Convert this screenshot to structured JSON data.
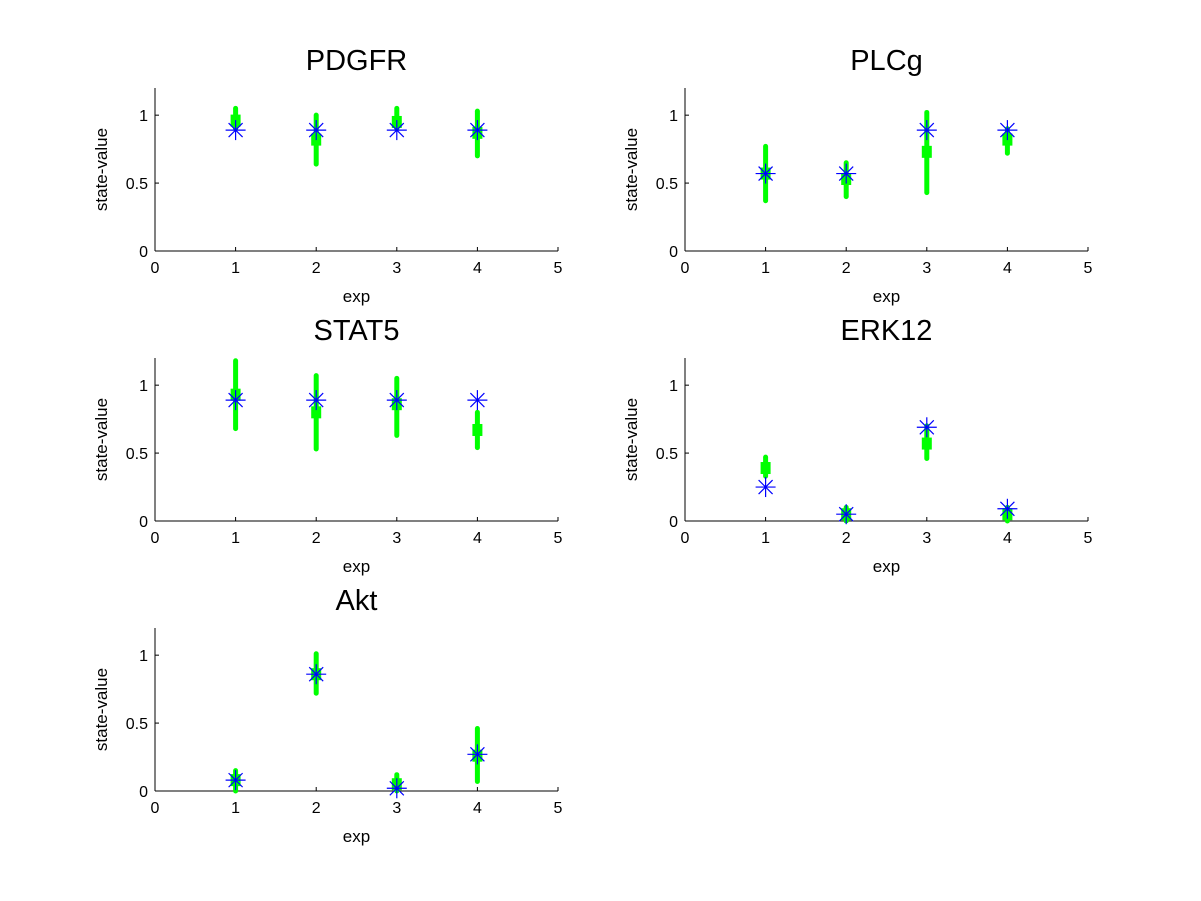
{
  "figure": {
    "background": "#ffffff",
    "marker_color": "#0000ff",
    "errorbar_color": "#00ff00"
  },
  "chart_data": [
    {
      "type": "scatter",
      "title": "PDGFR",
      "xlabel": "exp",
      "ylabel": "state-value",
      "xlim": [
        0,
        5
      ],
      "ylim": [
        0,
        1.2
      ],
      "xticks": [
        "0",
        "1",
        "2",
        "3",
        "4",
        "5"
      ],
      "yticks": [
        "0",
        "0.5",
        "1"
      ],
      "x": [
        1,
        2,
        3,
        4
      ],
      "measured": [
        0.96,
        0.82,
        0.95,
        0.87
      ],
      "error_low": [
        0.9,
        0.64,
        0.9,
        0.7
      ],
      "error_high": [
        1.05,
        1.0,
        1.05,
        1.03
      ],
      "simulated": [
        0.89,
        0.89,
        0.89,
        0.89
      ]
    },
    {
      "type": "scatter",
      "title": "PLCg",
      "xlabel": "exp",
      "ylabel": "state-value",
      "xlim": [
        0,
        5
      ],
      "ylim": [
        0,
        1.2
      ],
      "xticks": [
        "0",
        "1",
        "2",
        "3",
        "4",
        "5"
      ],
      "yticks": [
        "0",
        "0.5",
        "1"
      ],
      "x": [
        1,
        2,
        3,
        4
      ],
      "measured": [
        0.57,
        0.53,
        0.73,
        0.82
      ],
      "error_low": [
        0.37,
        0.4,
        0.43,
        0.72
      ],
      "error_high": [
        0.77,
        0.65,
        1.02,
        0.9
      ],
      "simulated": [
        0.57,
        0.57,
        0.89,
        0.89
      ]
    },
    {
      "type": "scatter",
      "title": "STAT5",
      "xlabel": "exp",
      "ylabel": "state-value",
      "xlim": [
        0,
        5
      ],
      "ylim": [
        0,
        1.2
      ],
      "xticks": [
        "0",
        "1",
        "2",
        "3",
        "4",
        "5"
      ],
      "yticks": [
        "0",
        "0.5",
        "1"
      ],
      "x": [
        1,
        2,
        3,
        4
      ],
      "measured": [
        0.93,
        0.8,
        0.86,
        0.67
      ],
      "error_low": [
        0.68,
        0.53,
        0.63,
        0.54
      ],
      "error_high": [
        1.18,
        1.07,
        1.05,
        0.8
      ],
      "simulated": [
        0.89,
        0.89,
        0.89,
        0.89
      ]
    },
    {
      "type": "scatter",
      "title": "ERK12",
      "xlabel": "exp",
      "ylabel": "state-value",
      "xlim": [
        0,
        5
      ],
      "ylim": [
        0,
        1.2
      ],
      "xticks": [
        "0",
        "1",
        "2",
        "3",
        "4",
        "5"
      ],
      "yticks": [
        "0",
        "0.5",
        "1"
      ],
      "x": [
        1,
        2,
        3,
        4
      ],
      "measured": [
        0.39,
        0.05,
        0.57,
        0.05
      ],
      "error_low": [
        0.33,
        0.0,
        0.46,
        0.0
      ],
      "error_high": [
        0.47,
        0.1,
        0.7,
        0.1
      ],
      "simulated": [
        0.25,
        0.05,
        0.69,
        0.09
      ]
    },
    {
      "type": "scatter",
      "title": "Akt",
      "xlabel": "exp",
      "ylabel": "state-value",
      "xlim": [
        0,
        5
      ],
      "ylim": [
        0,
        1.2
      ],
      "xticks": [
        "0",
        "1",
        "2",
        "3",
        "4",
        "5"
      ],
      "yticks": [
        "0",
        "0.5",
        "1"
      ],
      "x": [
        1,
        2,
        3,
        4
      ],
      "measured": [
        0.08,
        0.86,
        0.05,
        0.26
      ],
      "error_low": [
        0.0,
        0.72,
        0.0,
        0.07
      ],
      "error_high": [
        0.15,
        1.01,
        0.12,
        0.46
      ],
      "simulated": [
        0.08,
        0.86,
        0.02,
        0.27
      ]
    }
  ]
}
